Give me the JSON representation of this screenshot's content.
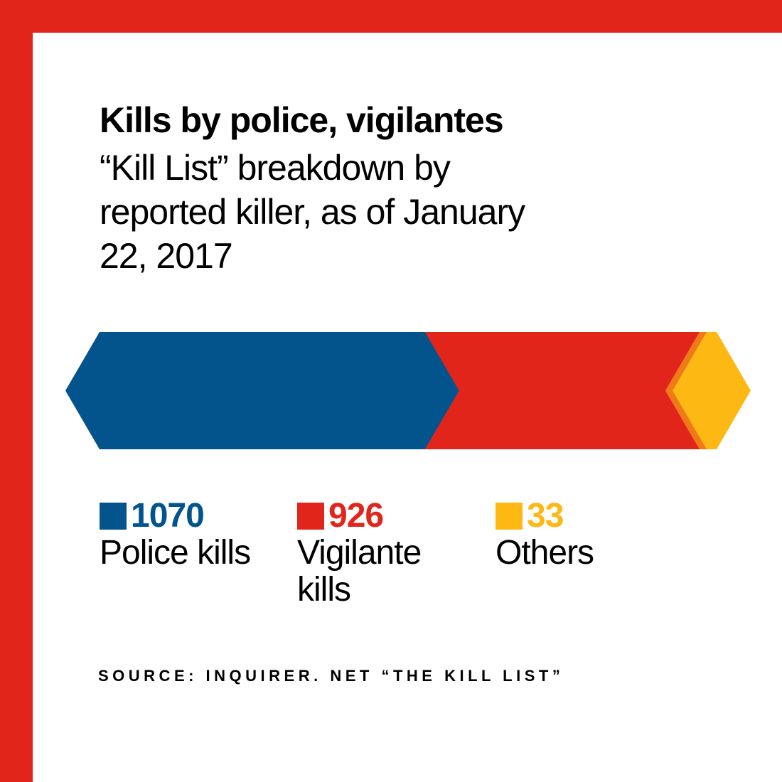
{
  "colors": {
    "frame": "#e1251b",
    "police": "#03538d",
    "vigilante": "#e1251b",
    "others": "#fdb813",
    "others_edge": "#ee7a1a"
  },
  "title": "Kills by police, vigilantes",
  "subtitle": "“Kill List” breakdown by reported killer, as of January 22, 2017",
  "source": "SOURCE: INQUIRER. NET “THE KILL LIST”",
  "chart_data": {
    "type": "bar",
    "stacked": true,
    "orientation": "horizontal",
    "categories": [
      "Police kills",
      "Vigilante kills",
      "Others"
    ],
    "values": [
      1070,
      926,
      33
    ],
    "title": "Kills by police, vigilantes",
    "subtitle": "“Kill List” breakdown by reported killer, as of January 22, 2017"
  },
  "legend": [
    {
      "value": "1070",
      "label": "Police kills"
    },
    {
      "value": "926",
      "label": "Vigilante kills"
    },
    {
      "value": "33",
      "label": "Others"
    }
  ]
}
